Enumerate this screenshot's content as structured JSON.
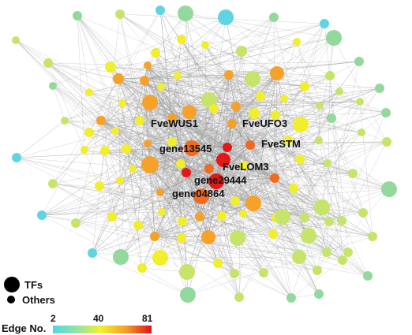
{
  "network": {
    "node_labels": [
      "FveWUS1",
      "FveUFO3",
      "gene13545",
      "FveSTM",
      "FveLOM3",
      "gene29444",
      "gene04864"
    ]
  },
  "legend": {
    "size_items": [
      {
        "label": "TFs",
        "kind": "large"
      },
      {
        "label": "Others",
        "kind": "small"
      }
    ],
    "color_scale": {
      "title": "Edge No.",
      "min": 2,
      "mid": 40,
      "max": 81,
      "tick_labels": [
        "2",
        "40",
        "81"
      ],
      "colors": [
        "#4fd8e8",
        "#7ee0a8",
        "#f3f22a",
        "#f5a623",
        "#e8301c",
        "#e0101a"
      ]
    }
  },
  "colors": {
    "edge": "#9a9a9a",
    "node_low": "#60d4e2",
    "node_mid": "#f1ee2c",
    "node_high": "#e51818"
  }
}
